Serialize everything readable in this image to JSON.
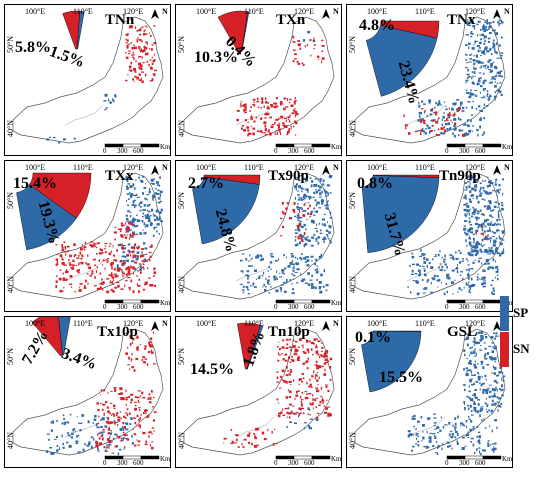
{
  "colors": {
    "sp": "#2f6aa8",
    "sn": "#d62027",
    "land": "#ffffff",
    "outline": "#555555"
  },
  "panel_labels": {
    "lon_ticks": [
      "100°E",
      "110°E",
      "120°E"
    ],
    "lat_ticks": [
      "50°N",
      "40°N"
    ],
    "north": "N",
    "scale": {
      "values": [
        "0",
        "300",
        "600"
      ],
      "unit": "Km"
    }
  },
  "panels": [
    {
      "title": "TNn",
      "sp": "1.5%",
      "sn": "5.8%",
      "sp_value": 1.5,
      "sn_value": 5.8
    },
    {
      "title": "TXn",
      "sp": "0.4%",
      "sn": "10.3%",
      "sp_value": 0.4,
      "sn_value": 10.3
    },
    {
      "title": "TNx",
      "sp": "23.4%",
      "sn": "4.8%",
      "sp_value": 23.4,
      "sn_value": 4.8
    },
    {
      "title": "TXx",
      "sp": "19.3%",
      "sn": "15.4%",
      "sp_value": 19.3,
      "sn_value": 15.4
    },
    {
      "title": "Tx90p",
      "sp": "24.8%",
      "sn": "2.7%",
      "sp_value": 24.8,
      "sn_value": 2.7
    },
    {
      "title": "Tn90p",
      "sp": "31.7%",
      "sn": "0.8%",
      "sp_value": 31.7,
      "sn_value": 0.8
    },
    {
      "title": "Tx10p",
      "sp": "3.4%",
      "sn": "7.2%",
      "sp_value": 3.4,
      "sn_value": 7.2
    },
    {
      "title": "Tn10p",
      "sp": "1.8%",
      "sn": "14.5%",
      "sp_value": 1.8,
      "sn_value": 14.5
    },
    {
      "title": "GSL",
      "sp": "15.5%",
      "sn": "0.1%",
      "sp_value": 15.5,
      "sn_value": 0.1
    }
  ],
  "legend": {
    "sp": "SP",
    "sn": "SN"
  }
}
